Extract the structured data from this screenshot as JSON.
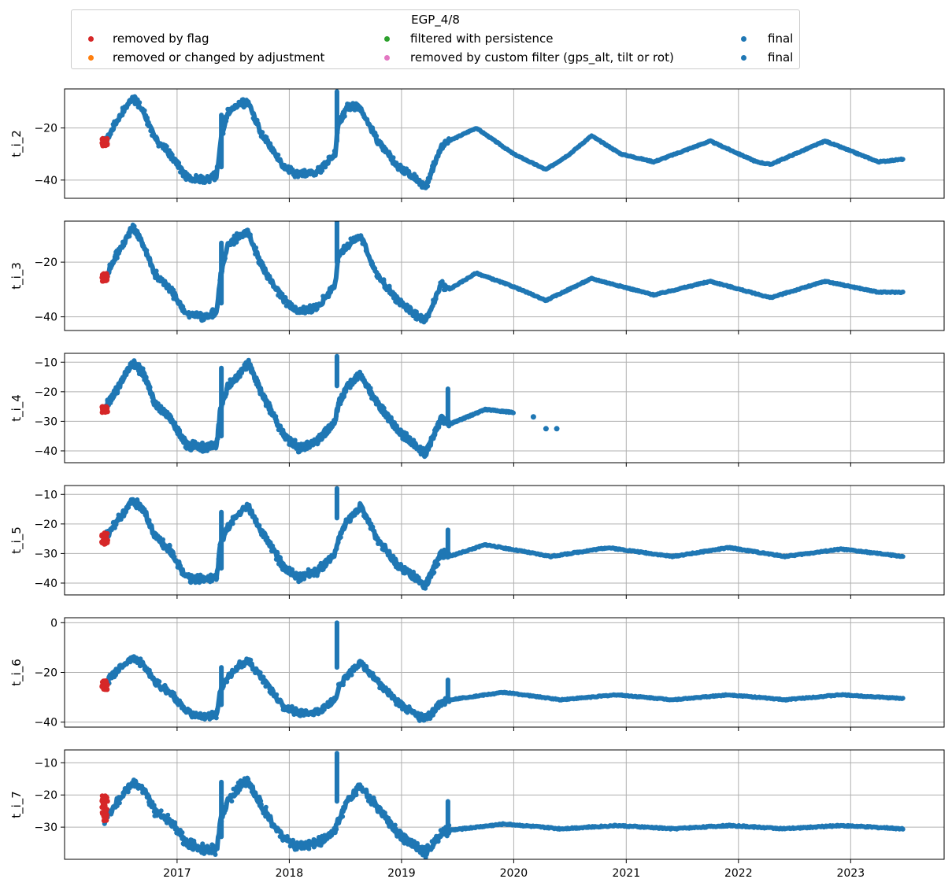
{
  "legend": {
    "title": "EGP_4/8",
    "items": [
      {
        "label": "removed by flag",
        "color": "#d62728"
      },
      {
        "label": "removed or changed by adjustment",
        "color": "#ff7f0e"
      },
      {
        "label": "filtered with persistence",
        "color": "#2ca02c"
      },
      {
        "label": "removed by custom filter (gps_alt, tilt or rot)",
        "color": "#e377c2"
      },
      {
        "label": "final",
        "color": "#1f77b4"
      },
      {
        "label": "final",
        "color": "#1f77b4"
      }
    ]
  },
  "chart_data": {
    "type": "scatter",
    "x_axis": {
      "type": "date",
      "range": [
        "2016-01-01",
        "2023-11-01"
      ],
      "tick_labels": [
        "2017",
        "2018",
        "2019",
        "2020",
        "2021",
        "2022",
        "2023"
      ],
      "grid": true
    },
    "panels": [
      {
        "ylabel": "t_i_2",
        "ylim": [
          -47,
          -5
        ],
        "yticks": [
          -20,
          -40
        ],
        "anchors": [
          [
            "2016-05-10",
            -26
          ],
          [
            "2016-06-20",
            -17
          ],
          [
            "2016-08-10",
            -8
          ],
          [
            "2016-09-15",
            -14
          ],
          [
            "2016-10-20",
            -24
          ],
          [
            "2016-12-10",
            -30
          ],
          [
            "2017-02-01",
            -39
          ],
          [
            "2017-04-01",
            -40
          ],
          [
            "2017-05-10",
            -38
          ],
          [
            "2017-05-22",
            -25
          ],
          [
            "2017-06-15",
            -14
          ],
          [
            "2017-07-25",
            -11
          ],
          [
            "2017-08-20",
            -10
          ],
          [
            "2017-10-01",
            -22
          ],
          [
            "2017-12-15",
            -35
          ],
          [
            "2018-02-01",
            -38
          ],
          [
            "2018-04-01",
            -37
          ],
          [
            "2018-05-30",
            -30
          ],
          [
            "2018-06-10",
            -18
          ],
          [
            "2018-07-10",
            -12
          ],
          [
            "2018-08-20",
            -12
          ],
          [
            "2018-10-15",
            -25
          ],
          [
            "2018-12-20",
            -35
          ],
          [
            "2019-02-15",
            -39
          ],
          [
            "2019-03-20",
            -43
          ],
          [
            "2019-05-10",
            -27
          ],
          [
            "2019-06-05",
            -25
          ],
          [
            "2019-09-01",
            -20
          ],
          [
            "2020-01-01",
            -30
          ],
          [
            "2020-04-15",
            -36
          ],
          [
            "2020-07-01",
            -30
          ],
          [
            "2020-09-10",
            -23
          ],
          [
            "2020-12-15",
            -30
          ],
          [
            "2021-04-01",
            -33
          ],
          [
            "2021-10-01",
            -25
          ],
          [
            "2022-03-01",
            -33
          ],
          [
            "2022-04-15",
            -34
          ],
          [
            "2022-10-10",
            -25
          ],
          [
            "2023-04-01",
            -33
          ],
          [
            "2023-06-20",
            -32
          ]
        ],
        "spikes": [
          [
            "2017-05-25",
            -35,
            -15
          ],
          [
            "2018-06-05",
            -25,
            -6
          ]
        ]
      },
      {
        "ylabel": "t_i_3",
        "ylim": [
          -45,
          -5
        ],
        "yticks": [
          -20,
          -40
        ],
        "anchors": [
          [
            "2016-05-10",
            -26
          ],
          [
            "2016-06-20",
            -17
          ],
          [
            "2016-08-10",
            -7
          ],
          [
            "2016-09-15",
            -14
          ],
          [
            "2016-10-20",
            -24
          ],
          [
            "2016-12-10",
            -30
          ],
          [
            "2017-02-01",
            -39
          ],
          [
            "2017-04-01",
            -40
          ],
          [
            "2017-05-10",
            -38
          ],
          [
            "2017-05-22",
            -25
          ],
          [
            "2017-06-15",
            -14
          ],
          [
            "2017-07-25",
            -10
          ],
          [
            "2017-08-20",
            -9
          ],
          [
            "2017-10-01",
            -21
          ],
          [
            "2017-12-15",
            -34
          ],
          [
            "2018-02-01",
            -38
          ],
          [
            "2018-04-01",
            -37
          ],
          [
            "2018-05-30",
            -28
          ],
          [
            "2018-06-10",
            -17
          ],
          [
            "2018-07-10",
            -14
          ],
          [
            "2018-08-20",
            -10
          ],
          [
            "2018-10-15",
            -25
          ],
          [
            "2018-12-20",
            -34
          ],
          [
            "2019-02-15",
            -39
          ],
          [
            "2019-03-20",
            -42
          ],
          [
            "2019-05-10",
            -28
          ],
          [
            "2019-06-05",
            -30
          ],
          [
            "2019-09-01",
            -24
          ],
          [
            "2020-01-01",
            -29
          ],
          [
            "2020-04-15",
            -34
          ],
          [
            "2020-09-10",
            -26
          ],
          [
            "2021-04-01",
            -32
          ],
          [
            "2021-10-01",
            -27
          ],
          [
            "2022-04-15",
            -33
          ],
          [
            "2022-10-10",
            -27
          ],
          [
            "2023-04-01",
            -31
          ],
          [
            "2023-06-20",
            -31
          ]
        ],
        "spikes": [
          [
            "2017-05-25",
            -35,
            -13
          ],
          [
            "2018-06-05",
            -20,
            -5
          ]
        ]
      },
      {
        "ylabel": "t_i_4",
        "ylim": [
          -44,
          -7
        ],
        "yticks": [
          -10,
          -20,
          -30,
          -40
        ],
        "anchors": [
          [
            "2016-05-10",
            -26
          ],
          [
            "2016-06-20",
            -19
          ],
          [
            "2016-08-10",
            -10
          ],
          [
            "2016-09-15",
            -14
          ],
          [
            "2016-10-20",
            -24
          ],
          [
            "2016-12-10",
            -29
          ],
          [
            "2017-02-01",
            -38
          ],
          [
            "2017-04-01",
            -39
          ],
          [
            "2017-05-10",
            -38
          ],
          [
            "2017-05-22",
            -26
          ],
          [
            "2017-06-15",
            -18
          ],
          [
            "2017-07-25",
            -14
          ],
          [
            "2017-08-20",
            -10
          ],
          [
            "2017-10-01",
            -20
          ],
          [
            "2017-12-15",
            -35
          ],
          [
            "2018-02-01",
            -39
          ],
          [
            "2018-04-01",
            -37
          ],
          [
            "2018-05-30",
            -30
          ],
          [
            "2018-06-10",
            -24
          ],
          [
            "2018-07-10",
            -18
          ],
          [
            "2018-08-20",
            -14
          ],
          [
            "2018-10-15",
            -24
          ],
          [
            "2018-12-20",
            -33
          ],
          [
            "2019-02-15",
            -38
          ],
          [
            "2019-03-20",
            -41
          ],
          [
            "2019-05-10",
            -29
          ],
          [
            "2019-06-05",
            -31
          ],
          [
            "2019-10-01",
            -26
          ],
          [
            "2019-12-31",
            -27
          ]
        ],
        "spikes": [
          [
            "2017-05-25",
            -35,
            -12
          ],
          [
            "2018-06-05",
            -18,
            -8
          ],
          [
            "2019-06-01",
            -31,
            -19
          ]
        ],
        "isolated": [
          [
            "2020-03-05",
            -28.5
          ],
          [
            "2020-04-15",
            -32.5
          ],
          [
            "2020-05-20",
            -32.5
          ]
        ]
      },
      {
        "ylabel": "t_i_5",
        "ylim": [
          -44,
          -7
        ],
        "yticks": [
          -10,
          -20,
          -30,
          -40
        ],
        "anchors": [
          [
            "2016-05-10",
            -25
          ],
          [
            "2016-06-20",
            -19
          ],
          [
            "2016-08-10",
            -12
          ],
          [
            "2016-09-15",
            -15
          ],
          [
            "2016-10-20",
            -24
          ],
          [
            "2016-12-10",
            -29
          ],
          [
            "2017-02-01",
            -38
          ],
          [
            "2017-04-01",
            -39
          ],
          [
            "2017-05-10",
            -38
          ],
          [
            "2017-05-22",
            -27
          ],
          [
            "2017-06-15",
            -21
          ],
          [
            "2017-07-25",
            -16
          ],
          [
            "2017-08-20",
            -14
          ],
          [
            "2017-10-01",
            -22
          ],
          [
            "2017-12-15",
            -35
          ],
          [
            "2018-02-01",
            -38
          ],
          [
            "2018-04-01",
            -36
          ],
          [
            "2018-05-30",
            -30
          ],
          [
            "2018-06-10",
            -25
          ],
          [
            "2018-07-10",
            -19
          ],
          [
            "2018-08-20",
            -14
          ],
          [
            "2018-10-15",
            -25
          ],
          [
            "2018-12-20",
            -34
          ],
          [
            "2019-02-15",
            -38
          ],
          [
            "2019-03-20",
            -41
          ],
          [
            "2019-05-10",
            -30
          ],
          [
            "2019-06-05",
            -31
          ],
          [
            "2019-10-01",
            -27
          ],
          [
            "2020-05-01",
            -31
          ],
          [
            "2020-11-01",
            -28
          ],
          [
            "2021-06-01",
            -31
          ],
          [
            "2021-12-01",
            -28
          ],
          [
            "2022-06-01",
            -31
          ],
          [
            "2022-12-01",
            -28.5
          ],
          [
            "2023-06-20",
            -31
          ]
        ],
        "spikes": [
          [
            "2017-05-25",
            -35,
            -16
          ],
          [
            "2018-06-05",
            -18,
            -8
          ],
          [
            "2019-06-01",
            -31,
            -22
          ]
        ]
      },
      {
        "ylabel": "t_i_6",
        "ylim": [
          -42,
          2
        ],
        "yticks": [
          0,
          -20,
          -40
        ],
        "anchors": [
          [
            "2016-05-10",
            -25
          ],
          [
            "2016-06-20",
            -19
          ],
          [
            "2016-08-10",
            -14
          ],
          [
            "2016-09-15",
            -17
          ],
          [
            "2016-10-20",
            -24
          ],
          [
            "2016-12-10",
            -28
          ],
          [
            "2017-02-01",
            -36
          ],
          [
            "2017-04-01",
            -38
          ],
          [
            "2017-05-10",
            -37
          ],
          [
            "2017-05-22",
            -27
          ],
          [
            "2017-06-15",
            -22
          ],
          [
            "2017-07-25",
            -17
          ],
          [
            "2017-08-20",
            -15
          ],
          [
            "2017-10-01",
            -22
          ],
          [
            "2017-12-15",
            -34
          ],
          [
            "2018-02-01",
            -36
          ],
          [
            "2018-04-01",
            -36
          ],
          [
            "2018-05-30",
            -31
          ],
          [
            "2018-06-10",
            -26
          ],
          [
            "2018-07-10",
            -21
          ],
          [
            "2018-08-20",
            -16
          ],
          [
            "2018-10-15",
            -24
          ],
          [
            "2018-12-20",
            -32
          ],
          [
            "2019-02-15",
            -37
          ],
          [
            "2019-03-20",
            -39
          ],
          [
            "2019-05-10",
            -32
          ],
          [
            "2019-06-05",
            -31
          ],
          [
            "2019-12-01",
            -28
          ],
          [
            "2020-06-01",
            -31
          ],
          [
            "2020-12-01",
            -29
          ],
          [
            "2021-06-01",
            -31
          ],
          [
            "2021-12-01",
            -29
          ],
          [
            "2022-06-01",
            -31
          ],
          [
            "2022-12-01",
            -29
          ],
          [
            "2023-06-20",
            -30.5
          ]
        ],
        "spikes": [
          [
            "2017-05-25",
            -33,
            -18
          ],
          [
            "2018-06-05",
            -18,
            0
          ],
          [
            "2019-06-01",
            -31,
            -23
          ]
        ]
      },
      {
        "ylabel": "t_i_7",
        "ylim": [
          -40,
          -6
        ],
        "yticks": [
          -10,
          -20,
          -30
        ],
        "anchors": [
          [
            "2016-05-10",
            -28
          ],
          [
            "2016-06-20",
            -22
          ],
          [
            "2016-08-10",
            -16
          ],
          [
            "2016-09-15",
            -18
          ],
          [
            "2016-10-20",
            -25
          ],
          [
            "2016-12-10",
            -28
          ],
          [
            "2017-02-01",
            -35
          ],
          [
            "2017-04-01",
            -37
          ],
          [
            "2017-05-10",
            -37
          ],
          [
            "2017-05-22",
            -28
          ],
          [
            "2017-06-15",
            -22
          ],
          [
            "2017-07-25",
            -17
          ],
          [
            "2017-08-20",
            -16
          ],
          [
            "2017-10-01",
            -23
          ],
          [
            "2017-12-15",
            -34
          ],
          [
            "2018-02-01",
            -36
          ],
          [
            "2018-04-01",
            -35
          ],
          [
            "2018-05-30",
            -31
          ],
          [
            "2018-06-10",
            -28
          ],
          [
            "2018-07-10",
            -22
          ],
          [
            "2018-08-20",
            -17
          ],
          [
            "2018-10-15",
            -24
          ],
          [
            "2018-12-20",
            -32
          ],
          [
            "2019-02-15",
            -36
          ],
          [
            "2019-03-20",
            -38
          ],
          [
            "2019-05-10",
            -32
          ],
          [
            "2019-06-05",
            -31
          ],
          [
            "2019-12-01",
            -29
          ],
          [
            "2020-06-01",
            -30.5
          ],
          [
            "2020-12-01",
            -29.5
          ],
          [
            "2021-06-01",
            -30.5
          ],
          [
            "2021-12-01",
            -29.5
          ],
          [
            "2022-06-01",
            -30.5
          ],
          [
            "2022-12-01",
            -29.5
          ],
          [
            "2023-06-20",
            -30.5
          ]
        ],
        "spikes": [
          [
            "2017-05-25",
            -33,
            -16
          ],
          [
            "2018-06-05",
            -22,
            -7
          ],
          [
            "2019-06-01",
            -31,
            -22
          ]
        ]
      }
    ],
    "flagged_red": [
      {
        "panel": 0,
        "x": [
          "2016-05-01",
          "2016-05-20"
        ],
        "y": [
          -27,
          -24
        ]
      },
      {
        "panel": 1,
        "x": [
          "2016-05-01",
          "2016-05-20"
        ],
        "y": [
          -27,
          -24
        ]
      },
      {
        "panel": 2,
        "x": [
          "2016-05-01",
          "2016-05-20"
        ],
        "y": [
          -27,
          -25
        ]
      },
      {
        "panel": 3,
        "x": [
          "2016-05-01",
          "2016-05-20"
        ],
        "y": [
          -27,
          -23
        ]
      },
      {
        "panel": 4,
        "x": [
          "2016-05-01",
          "2016-05-20"
        ],
        "y": [
          -27,
          -23
        ]
      },
      {
        "panel": 5,
        "x": [
          "2016-05-01",
          "2016-05-20"
        ],
        "y": [
          -28,
          -20
        ]
      }
    ]
  }
}
